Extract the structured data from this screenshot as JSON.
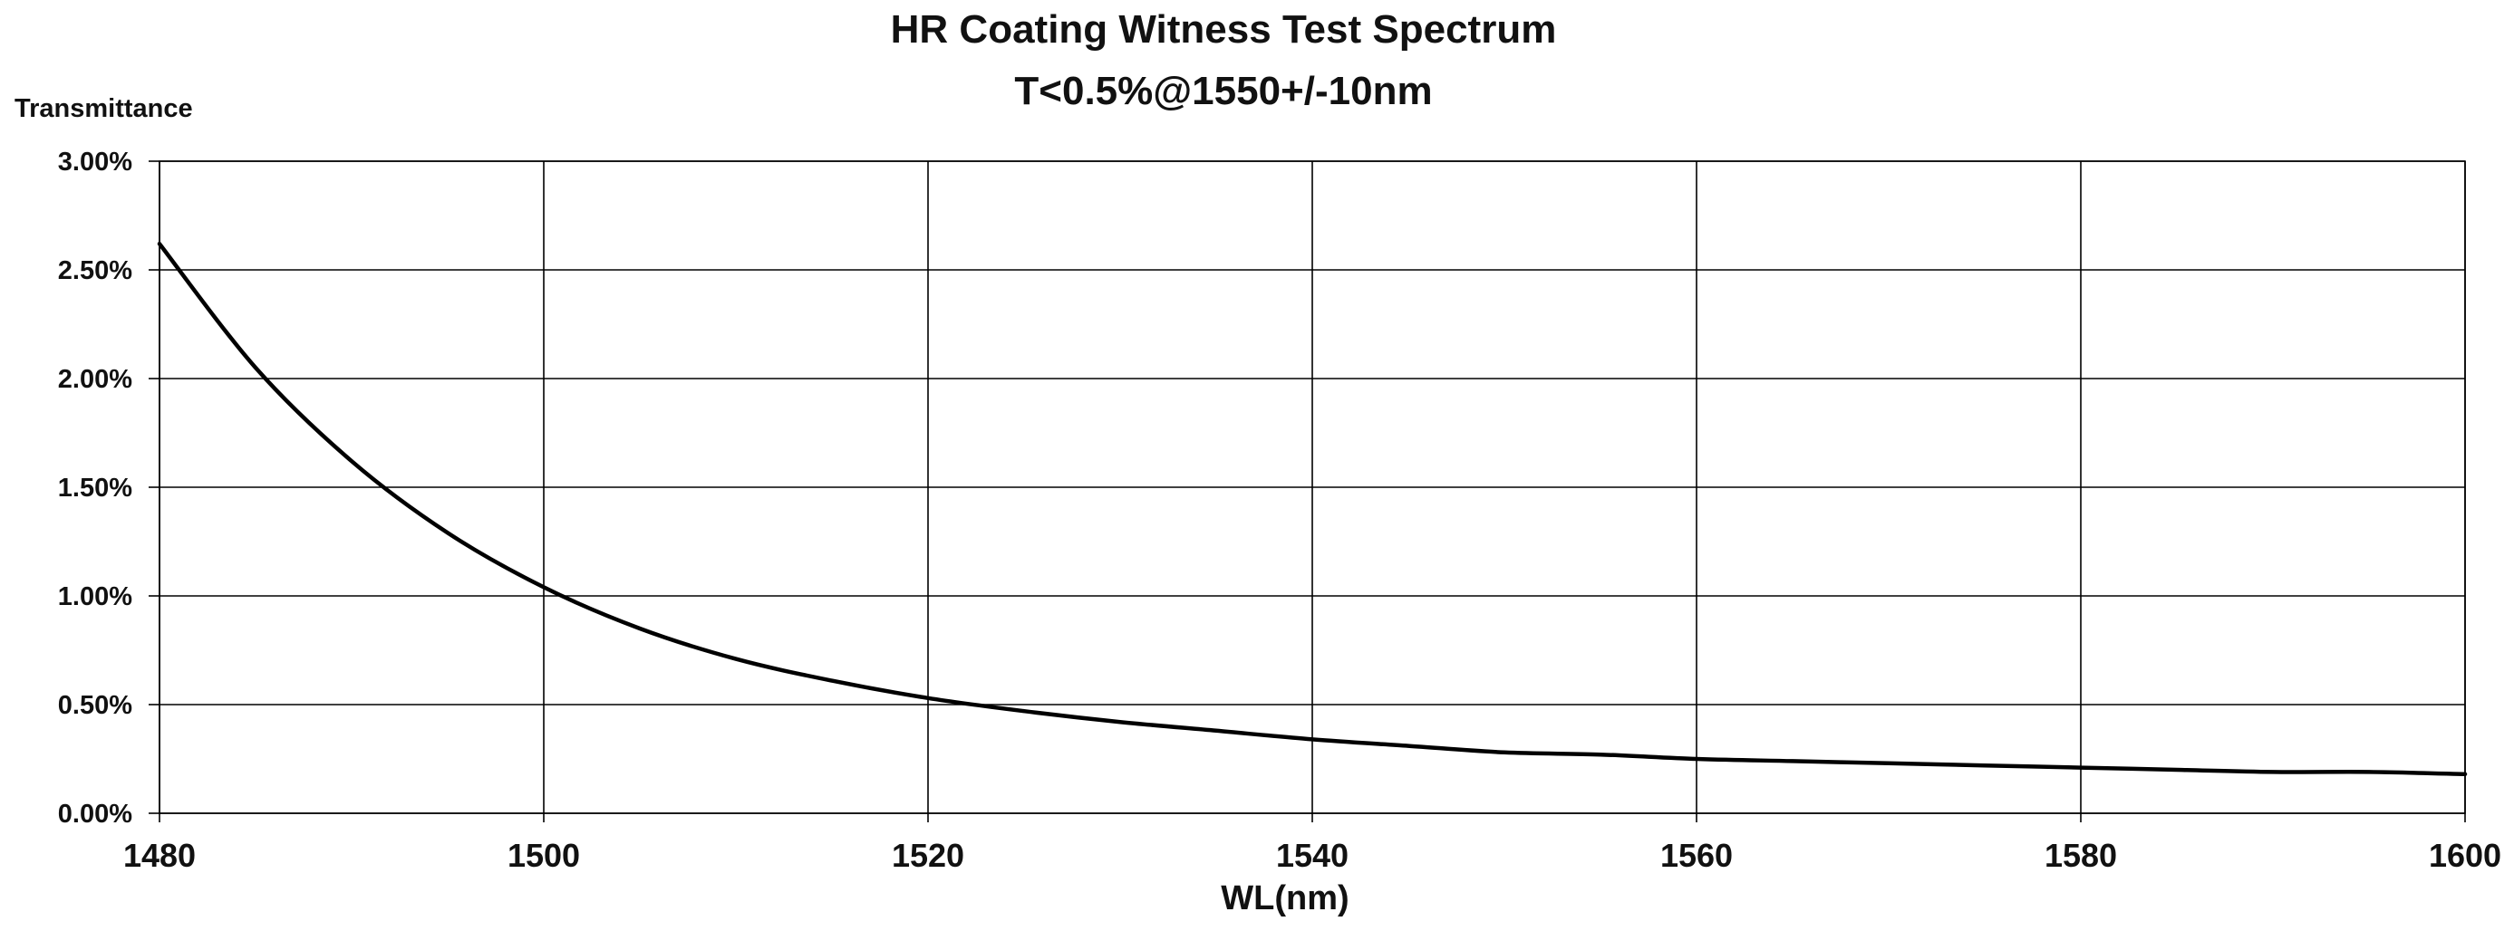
{
  "chart_data": {
    "type": "line",
    "title": "HR Coating Witness Test Spectrum",
    "subtitle": "T<0.5%@1550+/-10nm",
    "xlabel": "WL(nm)",
    "ylabel": "Transmittance",
    "xlim": [
      1480,
      1600
    ],
    "ylim": [
      0,
      3.0
    ],
    "x_ticks": [
      1480,
      1500,
      1520,
      1540,
      1560,
      1580,
      1600
    ],
    "x_tick_labels": [
      "1480",
      "1500",
      "1520",
      "1540",
      "1560",
      "1580",
      "1600"
    ],
    "y_ticks": [
      0,
      0.5,
      1.0,
      1.5,
      2.0,
      2.5,
      3.0
    ],
    "y_tick_labels": [
      "0.00%",
      "0.50%",
      "1.00%",
      "1.50%",
      "2.00%",
      "2.50%",
      "3.00%"
    ],
    "grid": true,
    "legend": false,
    "series": [
      {
        "color": "#000000",
        "x": [
          1480,
          1485,
          1490,
          1495,
          1500,
          1505,
          1510,
          1515,
          1520,
          1525,
          1530,
          1535,
          1540,
          1545,
          1550,
          1555,
          1560,
          1565,
          1570,
          1575,
          1580,
          1585,
          1590,
          1595,
          1600
        ],
        "y": [
          2.62,
          2.05,
          1.62,
          1.29,
          1.04,
          0.85,
          0.71,
          0.61,
          0.53,
          0.47,
          0.42,
          0.38,
          0.34,
          0.31,
          0.28,
          0.27,
          0.25,
          0.24,
          0.23,
          0.22,
          0.21,
          0.2,
          0.19,
          0.19,
          0.18
        ]
      }
    ]
  }
}
